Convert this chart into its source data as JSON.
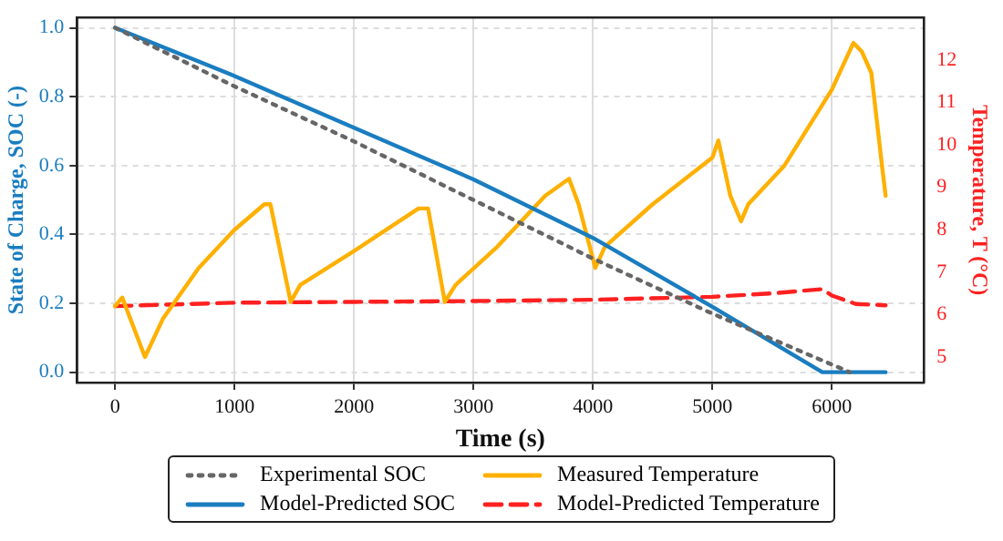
{
  "chart_data": {
    "type": "line",
    "xlabel": "Time (s)",
    "ylabel": "State of Charge, SOC (-)",
    "y2label": "Temperature, T (°C)",
    "xlim": [
      -320,
      6770
    ],
    "xticks": [
      0,
      1000,
      2000,
      3000,
      4000,
      5000,
      6000
    ],
    "ylim": [
      -0.03,
      1.03
    ],
    "yticks": [
      {
        "value": 0,
        "label": "0.0"
      },
      {
        "value": 0.2,
        "label": "0.2"
      },
      {
        "value": 0.4,
        "label": "0.4"
      },
      {
        "value": 0.6,
        "label": "0.6"
      },
      {
        "value": 0.8,
        "label": "0.8"
      },
      {
        "value": 1,
        "label": "1.0"
      }
    ],
    "y2lim": [
      4.4,
      13.0
    ],
    "y2ticks": [
      5,
      6,
      7,
      8,
      9,
      10,
      11,
      12
    ],
    "grid": true,
    "legend": "bottom",
    "marker": "none",
    "series": [
      {
        "name": "Experimental SOC",
        "color": "#666666",
        "line_style": "dotted",
        "x": [
          0,
          1000,
          2000,
          3000,
          4000,
          5000,
          6150
        ],
        "values": [
          1.0,
          0.83,
          0.67,
          0.5,
          0.33,
          0.17,
          0.0
        ]
      },
      {
        "name": "Model-Predicted SOC",
        "color": "#1a7dc0",
        "line_style": "solid",
        "x": [
          0,
          1000,
          2000,
          3000,
          4000,
          5000,
          5920,
          6450
        ],
        "values": [
          1.0,
          0.86,
          0.71,
          0.56,
          0.39,
          0.19,
          0.0,
          0.0
        ]
      },
      {
        "name": "Measured Temperature",
        "color": "#ffb000",
        "line_style": "solid",
        "axis": "y2",
        "x": [
          0,
          60,
          250,
          400,
          700,
          1000,
          1250,
          1300,
          1470,
          1550,
          2000,
          2540,
          2620,
          2760,
          2850,
          3200,
          3600,
          3800,
          3880,
          4020,
          4100,
          4500,
          5000,
          5050,
          5150,
          5240,
          5300,
          5600,
          6000,
          6180,
          6250,
          6330,
          6420,
          6450
        ],
        "values": [
          6.2,
          6.4,
          5.0,
          5.9,
          7.1,
          8.0,
          8.6,
          8.6,
          6.3,
          6.7,
          7.5,
          8.5,
          8.5,
          6.3,
          6.7,
          7.6,
          8.8,
          9.2,
          8.6,
          7.1,
          7.6,
          8.6,
          9.7,
          10.1,
          8.8,
          8.2,
          8.6,
          9.5,
          11.3,
          12.4,
          12.2,
          11.7,
          9.5,
          8.8
        ]
      },
      {
        "name": "Model-Predicted Temperature",
        "color": "#ff2020",
        "line_style": "dashed",
        "axis": "y2",
        "x": [
          0,
          1000,
          2000,
          3000,
          4000,
          5000,
          5500,
          5920,
          6000,
          6200,
          6450
        ],
        "values": [
          6.2,
          6.28,
          6.3,
          6.32,
          6.35,
          6.42,
          6.5,
          6.6,
          6.45,
          6.25,
          6.22
        ]
      }
    ]
  }
}
